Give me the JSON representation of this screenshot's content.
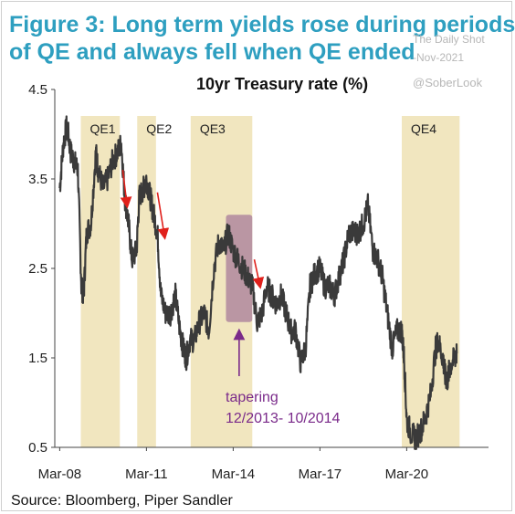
{
  "header": {
    "title_line1": "Figure 3: Long term yields rose during periods",
    "title_line2": "of QE and always fell when QE ended"
  },
  "watermark": {
    "site": "The Daily Shot",
    "date": "-Nov-2021",
    "handle": "@SoberLook"
  },
  "footer": {
    "source": "Source: Bloomberg, Piper Sandler"
  },
  "colors": {
    "title": "#2e9fc0",
    "qe_band": "#f1e6bf",
    "line": "#3a3a3a",
    "tapering_box": "#a77b9a",
    "tapering_text": "#7a2a8a",
    "arrow": "#e0201b"
  },
  "chart_data": {
    "type": "line",
    "title": "10yr Treasury rate (%)",
    "xlabel": "",
    "ylabel": "",
    "ylim": [
      0.5,
      4.5
    ],
    "xlim": [
      2008.0,
      2023.0
    ],
    "yticks": [
      0.5,
      1.5,
      2.5,
      3.5,
      4.5
    ],
    "ytick_labels": [
      "0.5",
      "1.5",
      "2.5",
      "3.5",
      "4.5"
    ],
    "xticks": [
      2008.17,
      2011.17,
      2014.17,
      2017.17,
      2020.17
    ],
    "xtick_labels": [
      "Mar-08",
      "Mar-11",
      "Mar-14",
      "Mar-17",
      "Mar-20"
    ],
    "grid": false,
    "qe_periods": [
      {
        "label": "QE1",
        "start": 2008.9,
        "end": 2010.25
      },
      {
        "label": "QE2",
        "start": 2010.85,
        "end": 2011.5
      },
      {
        "label": "QE3",
        "start": 2012.7,
        "end": 2014.83
      },
      {
        "label": "QE4",
        "start": 2020.0,
        "end": 2022.0
      }
    ],
    "tapering": {
      "label_line1": "tapering",
      "label_line2": "12/2013- 10/2014",
      "start": 2013.92,
      "end": 2014.83,
      "ymin": 1.9,
      "ymax": 3.1
    },
    "series": [
      {
        "values": [
          [
            2008.17,
            3.4
          ],
          [
            2008.3,
            3.9
          ],
          [
            2008.42,
            4.1
          ],
          [
            2008.55,
            3.8
          ],
          [
            2008.67,
            3.7
          ],
          [
            2008.8,
            3.6
          ],
          [
            2008.92,
            2.3
          ],
          [
            2009.0,
            2.2
          ],
          [
            2009.1,
            2.9
          ],
          [
            2009.25,
            3.0
          ],
          [
            2009.42,
            3.8
          ],
          [
            2009.5,
            3.6
          ],
          [
            2009.67,
            3.4
          ],
          [
            2009.83,
            3.5
          ],
          [
            2010.0,
            3.7
          ],
          [
            2010.17,
            3.8
          ],
          [
            2010.3,
            3.9
          ],
          [
            2010.42,
            3.3
          ],
          [
            2010.55,
            3.0
          ],
          [
            2010.67,
            2.6
          ],
          [
            2010.83,
            2.7
          ],
          [
            2010.92,
            3.3
          ],
          [
            2011.08,
            3.4
          ],
          [
            2011.17,
            3.5
          ],
          [
            2011.3,
            3.3
          ],
          [
            2011.42,
            3.1
          ],
          [
            2011.55,
            2.9
          ],
          [
            2011.67,
            2.2
          ],
          [
            2011.83,
            2.0
          ],
          [
            2012.0,
            2.0
          ],
          [
            2012.17,
            2.2
          ],
          [
            2012.33,
            1.8
          ],
          [
            2012.45,
            1.6
          ],
          [
            2012.55,
            1.5
          ],
          [
            2012.67,
            1.7
          ],
          [
            2012.83,
            1.7
          ],
          [
            2013.0,
            1.9
          ],
          [
            2013.17,
            2.0
          ],
          [
            2013.33,
            1.8
          ],
          [
            2013.5,
            2.5
          ],
          [
            2013.67,
            2.8
          ],
          [
            2013.83,
            2.7
          ],
          [
            2014.0,
            2.9
          ],
          [
            2014.17,
            2.7
          ],
          [
            2014.33,
            2.6
          ],
          [
            2014.5,
            2.5
          ],
          [
            2014.67,
            2.4
          ],
          [
            2014.83,
            2.3
          ],
          [
            2015.0,
            1.9
          ],
          [
            2015.17,
            2.0
          ],
          [
            2015.33,
            2.3
          ],
          [
            2015.5,
            2.2
          ],
          [
            2015.67,
            2.1
          ],
          [
            2015.83,
            2.2
          ],
          [
            2016.0,
            2.0
          ],
          [
            2016.17,
            1.8
          ],
          [
            2016.33,
            1.8
          ],
          [
            2016.5,
            1.45
          ],
          [
            2016.67,
            1.6
          ],
          [
            2016.83,
            2.3
          ],
          [
            2017.0,
            2.45
          ],
          [
            2017.17,
            2.5
          ],
          [
            2017.33,
            2.3
          ],
          [
            2017.5,
            2.3
          ],
          [
            2017.67,
            2.2
          ],
          [
            2017.83,
            2.4
          ],
          [
            2018.0,
            2.6
          ],
          [
            2018.17,
            2.9
          ],
          [
            2018.33,
            2.9
          ],
          [
            2018.5,
            2.9
          ],
          [
            2018.67,
            3.0
          ],
          [
            2018.83,
            3.2
          ],
          [
            2019.0,
            2.7
          ],
          [
            2019.17,
            2.6
          ],
          [
            2019.33,
            2.4
          ],
          [
            2019.5,
            2.0
          ],
          [
            2019.67,
            1.6
          ],
          [
            2019.83,
            1.8
          ],
          [
            2020.0,
            1.8
          ],
          [
            2020.08,
            1.5
          ],
          [
            2020.17,
            0.8
          ],
          [
            2020.33,
            0.65
          ],
          [
            2020.5,
            0.6
          ],
          [
            2020.67,
            0.7
          ],
          [
            2020.83,
            0.85
          ],
          [
            2021.0,
            1.1
          ],
          [
            2021.17,
            1.6
          ],
          [
            2021.25,
            1.7
          ],
          [
            2021.42,
            1.5
          ],
          [
            2021.5,
            1.3
          ],
          [
            2021.58,
            1.25
          ],
          [
            2021.67,
            1.4
          ],
          [
            2021.83,
            1.5
          ],
          [
            2021.9,
            1.55
          ]
        ]
      }
    ]
  }
}
